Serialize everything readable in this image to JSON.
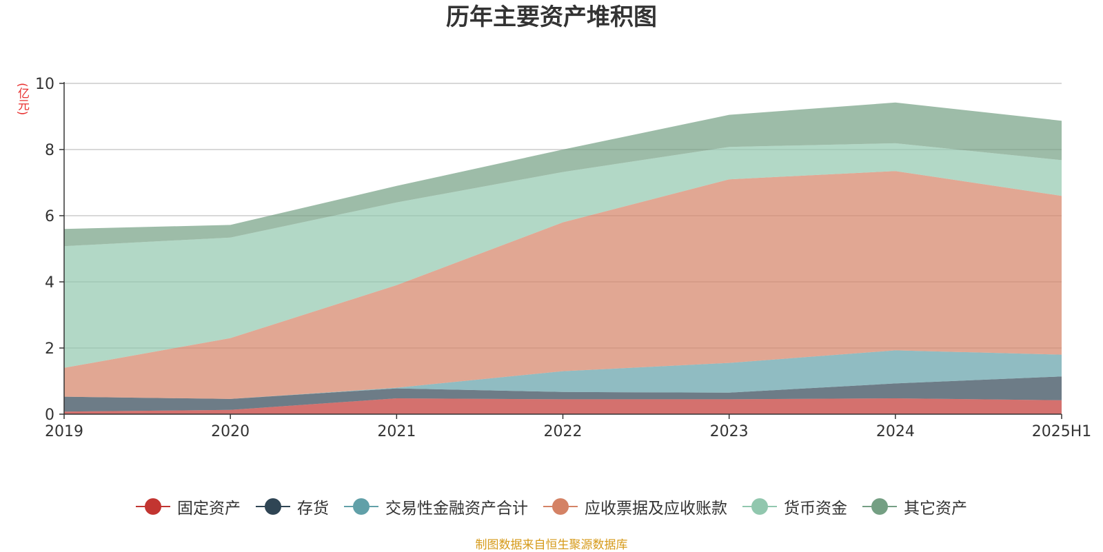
{
  "chart_data": {
    "type": "area",
    "stacked": true,
    "title": "历年主要资产堆积图",
    "unit_label": "(亿元)",
    "categories": [
      "2019",
      "2020",
      "2021",
      "2022",
      "2023",
      "2024",
      "2025H1"
    ],
    "ylim": [
      0,
      10
    ],
    "y_ticks": [
      0,
      2,
      4,
      6,
      8,
      10
    ],
    "grid": true,
    "legend_position": "bottom",
    "series": [
      {
        "name": "固定资产",
        "color": "#c23531",
        "values": [
          0.08,
          0.13,
          0.48,
          0.45,
          0.45,
          0.48,
          0.42
        ]
      },
      {
        "name": "存货",
        "color": "#2f4554",
        "values": [
          0.45,
          0.33,
          0.3,
          0.22,
          0.2,
          0.45,
          0.72
        ]
      },
      {
        "name": "交易性金融资产合计",
        "color": "#61a0a8",
        "values": [
          0.0,
          0.0,
          0.02,
          0.63,
          0.9,
          1.0,
          0.66
        ]
      },
      {
        "name": "应收票据及应收账款",
        "color": "#d48265",
        "values": [
          0.87,
          1.84,
          3.1,
          4.5,
          5.55,
          5.42,
          4.8
        ]
      },
      {
        "name": "货币资金",
        "color": "#91c7ae",
        "values": [
          3.68,
          3.04,
          2.5,
          1.52,
          0.98,
          0.84,
          1.08
        ]
      },
      {
        "name": "其它资产",
        "color": "#749f83",
        "values": [
          0.52,
          0.38,
          0.5,
          0.68,
          0.97,
          1.23,
          1.19
        ]
      }
    ]
  },
  "source_note": "制图数据来自恒生聚源数据库"
}
